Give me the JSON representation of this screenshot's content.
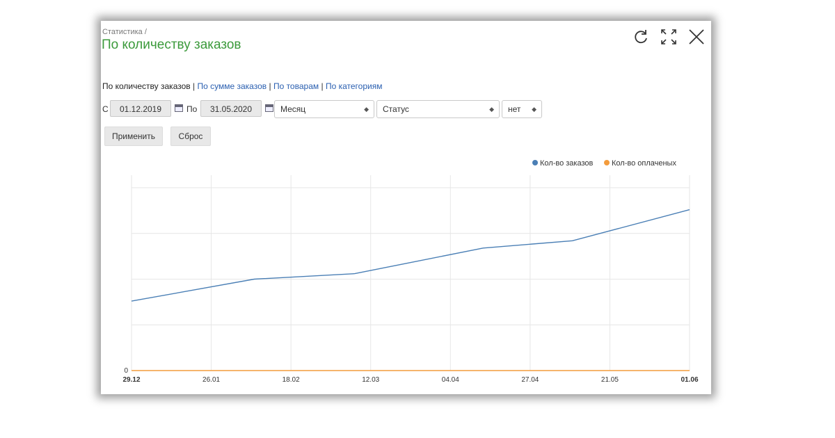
{
  "header": {
    "breadcrumb": "Статистика /",
    "title": "По количеству заказов",
    "icons": [
      "refresh-icon",
      "fullscreen-icon",
      "close-icon"
    ]
  },
  "tabs": {
    "active": "По количеству заказов",
    "separator": "|",
    "links": [
      "По сумме заказов",
      "По товарам",
      "По категориям"
    ]
  },
  "filters": {
    "from_label": "С",
    "from_value": "01.12.2019",
    "to_label": "По",
    "to_value": "31.05.2020",
    "period": "Месяц",
    "status": "Статус",
    "extra": "нет"
  },
  "buttons": {
    "apply": "Применить",
    "reset": "Сброс"
  },
  "chart_data": {
    "type": "line",
    "x": [
      "29.12",
      "26.01",
      "18.02",
      "12.03",
      "04.04",
      "27.04",
      "21.05",
      "01.06"
    ],
    "x_labels_bold": [
      "29.12",
      "01.06"
    ],
    "series": [
      {
        "name": "Кол-во заказов",
        "color": "#4a7fb5",
        "points": [
          [
            0.0,
            0.38
          ],
          [
            0.22,
            0.5
          ],
          [
            0.4,
            0.53
          ],
          [
            0.63,
            0.67
          ],
          [
            0.79,
            0.71
          ],
          [
            1.0,
            0.88
          ]
        ]
      },
      {
        "name": "Кол-во оплаченых",
        "color": "#f39c3c",
        "points": [
          [
            0.0,
            0.0
          ],
          [
            1.0,
            0.0
          ]
        ]
      }
    ],
    "y_tick_labels": [
      "0"
    ],
    "grid": true,
    "legend": "top-right"
  }
}
